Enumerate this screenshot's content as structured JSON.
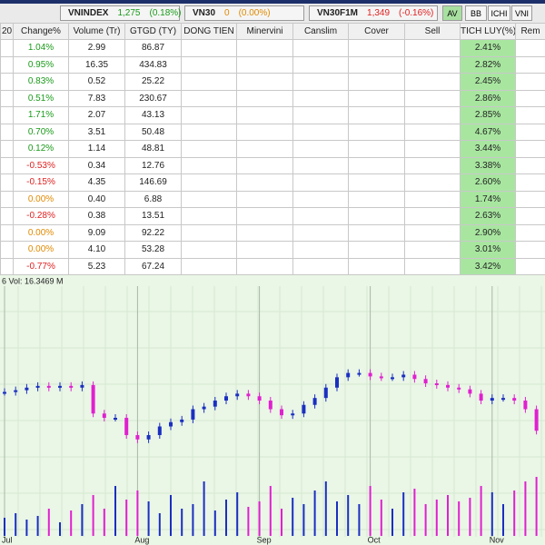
{
  "top_bar": {
    "indices": [
      {
        "name": "VNINDEX",
        "value": "1,275",
        "change": "(0.18%)",
        "color": "#1a9a1a"
      },
      {
        "name": "VN30",
        "value": "0",
        "change": "(0.00%)",
        "color": "#e08a00"
      },
      {
        "name": "VN30F1M",
        "value": "1,349",
        "change": "(-0.16%)",
        "color": "#e02020"
      }
    ],
    "buttons": [
      "AV",
      "BB",
      "ICHI",
      "VNI"
    ],
    "active_button": "AV"
  },
  "table": {
    "headers": [
      "20",
      "Change%",
      "Volume (Tr)",
      "GTGD (TY)",
      "DONG TIEN",
      "Minervini",
      "Canslim",
      "Cover",
      "Sell",
      "TICH LUY(%)",
      "Rem"
    ],
    "rows": [
      {
        "change": "1.04%",
        "color": "#1a9a1a",
        "volume": "2.99",
        "gtgd": "86.87",
        "tich_luy": "2.41%"
      },
      {
        "change": "0.95%",
        "color": "#1a9a1a",
        "volume": "16.35",
        "gtgd": "434.83",
        "tich_luy": "2.82%"
      },
      {
        "change": "0.83%",
        "color": "#1a9a1a",
        "volume": "0.52",
        "gtgd": "25.22",
        "tich_luy": "2.45%"
      },
      {
        "change": "0.51%",
        "color": "#1a9a1a",
        "volume": "7.83",
        "gtgd": "230.67",
        "tich_luy": "2.86%"
      },
      {
        "change": "1.71%",
        "color": "#1a9a1a",
        "volume": "2.07",
        "gtgd": "43.13",
        "tich_luy": "2.85%"
      },
      {
        "change": "0.70%",
        "color": "#1a9a1a",
        "volume": "3.51",
        "gtgd": "50.48",
        "tich_luy": "4.67%"
      },
      {
        "change": "0.12%",
        "color": "#1a9a1a",
        "volume": "1.14",
        "gtgd": "48.81",
        "tich_luy": "3.44%"
      },
      {
        "change": "-0.53%",
        "color": "#e02020",
        "volume": "0.34",
        "gtgd": "12.76",
        "tich_luy": "3.38%"
      },
      {
        "change": "-0.15%",
        "color": "#e02020",
        "volume": "4.35",
        "gtgd": "146.69",
        "tich_luy": "2.60%"
      },
      {
        "change": "0.00%",
        "color": "#e08a00",
        "volume": "0.40",
        "gtgd": "6.88",
        "tich_luy": "1.74%"
      },
      {
        "change": "-0.28%",
        "color": "#e02020",
        "volume": "0.38",
        "gtgd": "13.51",
        "tich_luy": "2.63%"
      },
      {
        "change": "0.00%",
        "color": "#e08a00",
        "volume": "9.09",
        "gtgd": "92.22",
        "tich_luy": "2.90%"
      },
      {
        "change": "0.00%",
        "color": "#e08a00",
        "volume": "4.10",
        "gtgd": "53.28",
        "tich_luy": "3.01%"
      },
      {
        "change": "-0.77%",
        "color": "#e02020",
        "volume": "5.23",
        "gtgd": "67.24",
        "tich_luy": "3.42%"
      }
    ]
  },
  "chart": {
    "info": "6   Vol: 16.3469 M",
    "up_color": "#1a2fc0",
    "down_color": "#e020d0",
    "price": [
      70,
      72,
      75,
      77,
      75,
      77,
      75,
      78,
      45,
      40,
      40,
      20,
      15,
      20,
      30,
      35,
      38,
      50,
      53,
      60,
      65,
      68,
      65,
      60,
      50,
      43,
      45,
      55,
      63,
      75,
      87,
      92,
      92,
      88,
      87,
      87,
      90,
      85,
      80,
      78,
      75,
      73,
      68,
      60,
      63,
      63,
      60,
      50,
      25
    ],
    "ylim": [
      0,
      100
    ],
    "volume": [
      20,
      25,
      18,
      22,
      30,
      15,
      28,
      35,
      45,
      30,
      55,
      40,
      50,
      38,
      25,
      45,
      30,
      35,
      60,
      28,
      40,
      48,
      32,
      38,
      55,
      30,
      42,
      35,
      50,
      60,
      38,
      45,
      35,
      55,
      40,
      30,
      48,
      52,
      35,
      40,
      45,
      38,
      42,
      55,
      48,
      35,
      50,
      60,
      65
    ],
    "vlim": [
      0,
      70
    ],
    "months": [
      {
        "label": "Jul",
        "index": 0
      },
      {
        "label": "Aug",
        "index": 12
      },
      {
        "label": "Sep",
        "index": 23
      },
      {
        "label": "Oct",
        "index": 33
      },
      {
        "label": "Nov",
        "index": 44
      }
    ]
  }
}
